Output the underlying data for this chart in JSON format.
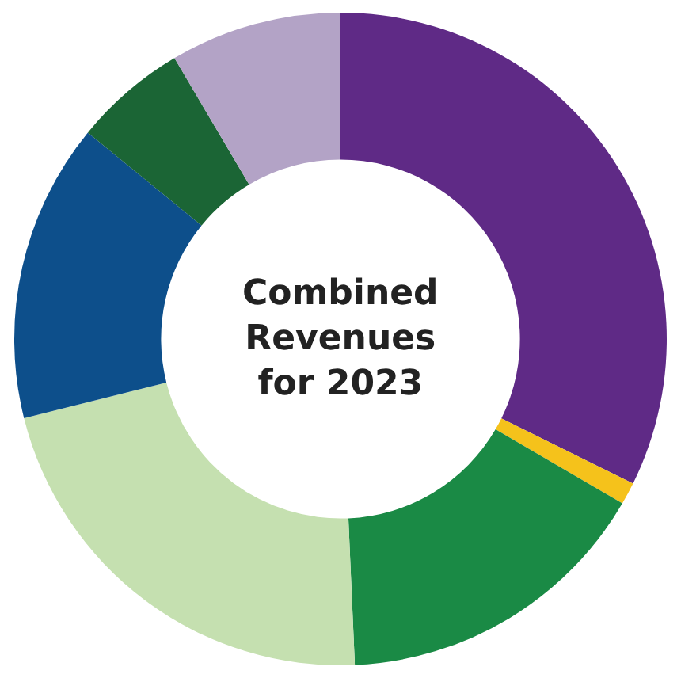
{
  "chart_data": {
    "type": "donut",
    "title": "Combined\nRevenues\nfor 2023",
    "categories": [
      null,
      null,
      null,
      null,
      null,
      null,
      null
    ],
    "values": [
      32.3,
      1.1,
      15.9,
      21.8,
      14.8,
      5.6,
      8.5
    ],
    "colors": [
      "#5f2a86",
      "#f5c21b",
      "#1a8a45",
      "#c5e0b0",
      "#0d4f8b",
      "#1b6535",
      "#b3a3c6"
    ],
    "legend": false
  }
}
